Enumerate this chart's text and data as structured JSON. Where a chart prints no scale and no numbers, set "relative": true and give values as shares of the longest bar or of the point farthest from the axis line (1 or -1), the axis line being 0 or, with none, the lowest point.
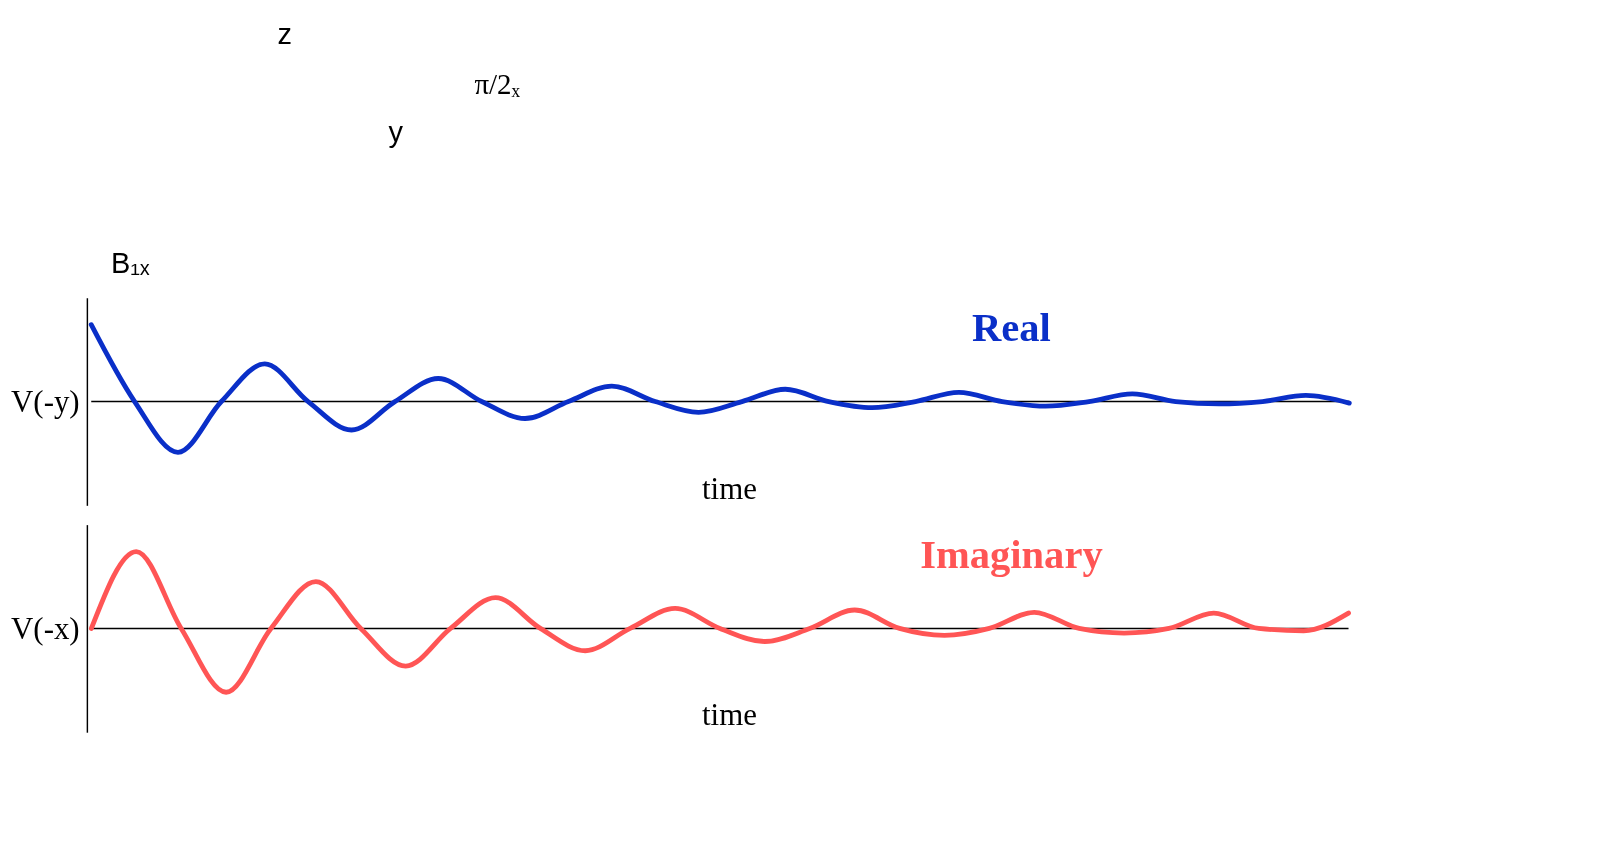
{
  "chart_data": [
    {
      "type": "other",
      "annotations": [
        "z",
        "y",
        "B₁ₓ",
        "π/2ₓ"
      ]
    },
    {
      "type": "line",
      "relative": true,
      "tick_labels": false,
      "xlabel": "time",
      "ylabel": "V(-y)",
      "categories": [
        null,
        null,
        null,
        null,
        null,
        null,
        null,
        null,
        null,
        null,
        null,
        null,
        null,
        null,
        null,
        null,
        null,
        null,
        null,
        null,
        null,
        null,
        null,
        null,
        null,
        null,
        null,
        null,
        null,
        null
      ],
      "series": [
        {
          "name": "Real",
          "color": "#0a2fc8",
          "values": [
            1.0,
            0,
            -0.66,
            0,
            0.49,
            0,
            -0.37,
            0,
            0.3,
            0,
            -0.22,
            0,
            0.2,
            0,
            -0.14,
            0,
            0.16,
            0,
            -0.08,
            0,
            0.12,
            0,
            -0.06,
            0,
            0.1,
            0,
            -0.03,
            0,
            0.08,
            -0.02
          ]
        }
      ]
    },
    {
      "type": "line",
      "relative": true,
      "tick_labels": false,
      "xlabel": "time",
      "ylabel": "V(-x)",
      "categories": [
        null,
        null,
        null,
        null,
        null,
        null,
        null,
        null,
        null,
        null,
        null,
        null,
        null,
        null,
        null,
        null,
        null,
        null,
        null,
        null,
        null,
        null,
        null,
        null,
        null,
        null,
        null,
        null,
        null
      ],
      "series": [
        {
          "name": "Imaginary",
          "color": "#ff5555",
          "values": [
            0,
            1.0,
            0,
            -0.83,
            0,
            0.61,
            0,
            -0.49,
            0,
            0.4,
            0,
            -0.29,
            0,
            0.26,
            0,
            -0.17,
            0,
            0.24,
            0,
            -0.09,
            0,
            0.21,
            0,
            -0.06,
            0,
            0.2,
            0,
            -0.03,
            0.2
          ]
        }
      ]
    }
  ]
}
